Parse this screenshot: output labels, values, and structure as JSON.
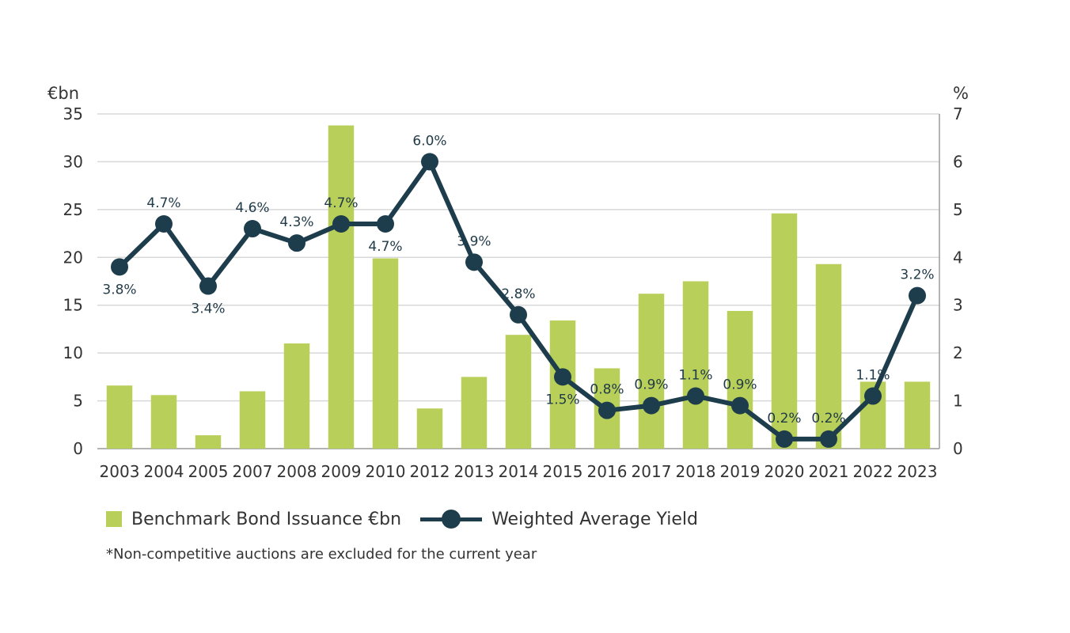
{
  "chart_data": {
    "type": "bar+line",
    "categories": [
      "2003",
      "2004",
      "2005",
      "2007",
      "2008",
      "2009",
      "2010",
      "2012",
      "2013",
      "2014",
      "2015",
      "2016",
      "2017",
      "2018",
      "2019",
      "2020",
      "2021",
      "2022",
      "2023"
    ],
    "series": [
      {
        "name": "Benchmark Bond Issuance €bn",
        "type": "bar",
        "axis": "left",
        "color": "#b8cf5a",
        "values": [
          6.6,
          5.6,
          1.4,
          6.0,
          11.0,
          33.8,
          19.9,
          4.2,
          7.5,
          11.9,
          13.4,
          8.4,
          16.2,
          17.5,
          14.4,
          24.6,
          19.3,
          7.0,
          7.0
        ]
      },
      {
        "name": "Weighted Average Yield",
        "type": "line",
        "axis": "right",
        "color": "#1e3d4c",
        "values": [
          3.8,
          4.7,
          3.4,
          4.6,
          4.3,
          4.7,
          4.7,
          6.0,
          3.9,
          2.8,
          1.5,
          0.8,
          0.9,
          1.1,
          0.9,
          0.2,
          0.2,
          1.1,
          3.2
        ],
        "labels": [
          "3.8%",
          "4.7%",
          "3.4%",
          "4.6%",
          "4.3%",
          "4.7%",
          "4.7%",
          "6.0%",
          "3.9%",
          "2.8%",
          "1.5%",
          "0.8%",
          "0.9%",
          "1.1%",
          "0.9%",
          "0.2%",
          "0.2%",
          "1.1%",
          "3.2%"
        ],
        "label_positions": [
          "below",
          "above",
          "below",
          "above",
          "above",
          "above",
          "below",
          "above",
          "above",
          "above",
          "below",
          "above",
          "above",
          "above",
          "above",
          "above",
          "above",
          "above",
          "above"
        ]
      }
    ],
    "y_left": {
      "label": "€bn",
      "min": 0,
      "max": 35,
      "ticks": [
        0,
        5,
        10,
        15,
        20,
        25,
        30,
        35
      ]
    },
    "y_right": {
      "label": "%",
      "min": 0,
      "max": 7,
      "ticks": [
        0,
        1,
        2,
        3,
        4,
        5,
        6,
        7
      ]
    },
    "grid": true,
    "legend_position": "bottom-left",
    "footnote": "*Non-competitive auctions are excluded for the current year"
  }
}
